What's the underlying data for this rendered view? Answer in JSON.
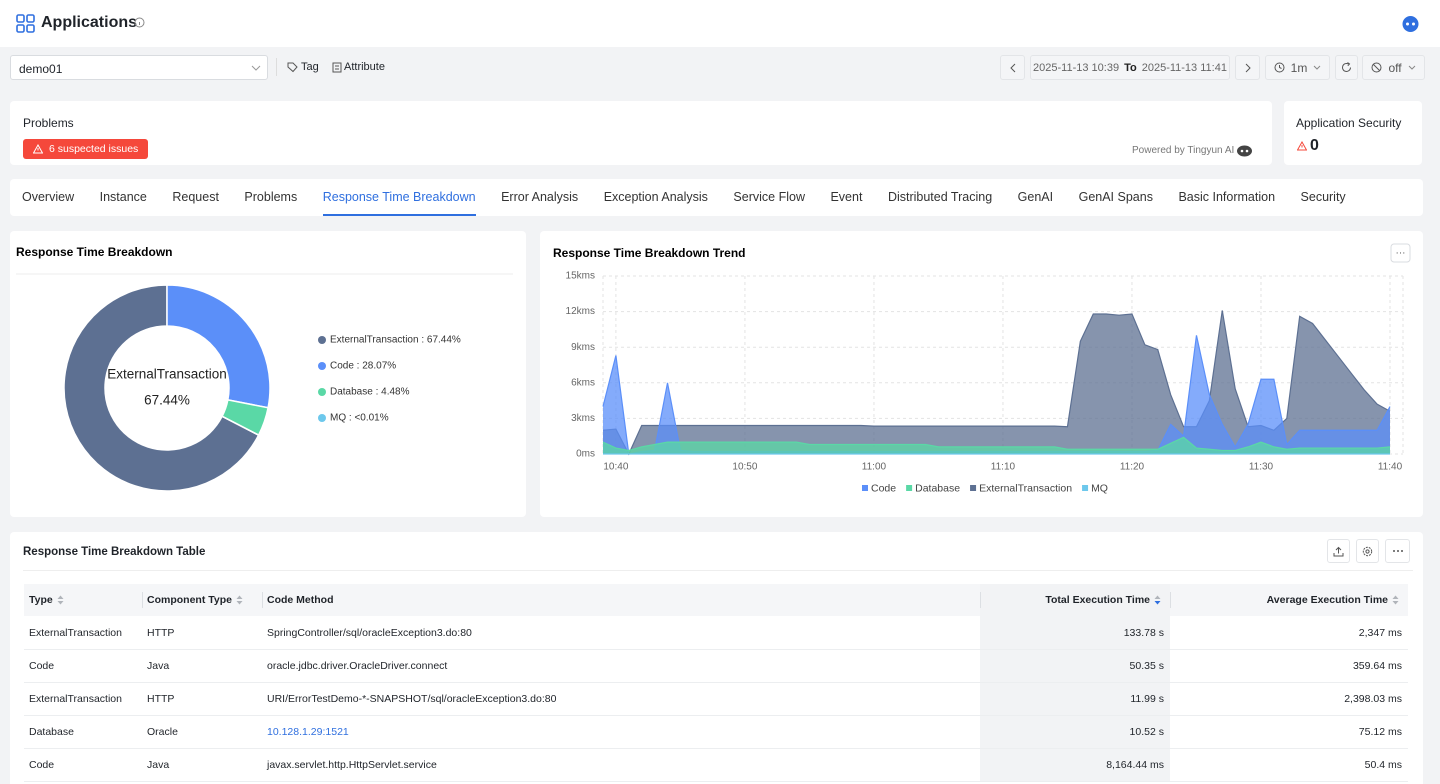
{
  "header": {
    "title": "Applications"
  },
  "toolbar": {
    "app": "demo01",
    "tag": "Tag",
    "attribute": "Attribute",
    "time_from": "2025-11-13 10:39",
    "to": "To",
    "time_to": "2025-11-13 11:41",
    "interval": "1m",
    "auto_refresh": "off"
  },
  "problems": {
    "title": "Problems",
    "badge": "6 suspected issues",
    "powered_by": "Powered by Tingyun AI"
  },
  "security": {
    "title": "Application Security",
    "count": "0"
  },
  "tabs": {
    "items": [
      "Overview",
      "Instance",
      "Request",
      "Problems",
      "Response Time Breakdown",
      "Error Analysis",
      "Exception Analysis",
      "Service Flow",
      "Event",
      "Distributed Tracing",
      "GenAI",
      "GenAI Spans",
      "Basic Information",
      "Security"
    ],
    "active": 4
  },
  "chart_data": [
    {
      "type": "pie",
      "title": "Response Time Breakdown",
      "categories": [
        "ExternalTransaction",
        "Code",
        "Database",
        "MQ"
      ],
      "values": [
        67.44,
        28.07,
        4.48,
        0.005
      ],
      "colors": [
        "#5d7092",
        "#5b8ff9",
        "#5ad8a6",
        "#6dc8ec"
      ],
      "legend_labels": [
        "ExternalTransaction : 67.44%",
        "Code : 28.07%",
        "Database : 4.48%",
        "MQ : <0.01%"
      ],
      "center_value": "67.44%"
    },
    {
      "type": "area",
      "title": "Response Time Breakdown Trend",
      "categories": [
        null,
        "10:40",
        null,
        null,
        null,
        null,
        null,
        null,
        null,
        null,
        null,
        "10:50",
        null,
        null,
        null,
        null,
        null,
        null,
        null,
        null,
        null,
        "11:00",
        null,
        null,
        null,
        null,
        null,
        null,
        null,
        null,
        null,
        "11:10",
        null,
        null,
        null,
        null,
        null,
        null,
        null,
        null,
        null,
        "11:20",
        null,
        null,
        null,
        null,
        null,
        null,
        null,
        null,
        null,
        "11:30",
        null,
        null,
        null,
        null,
        null,
        null,
        null,
        null,
        null,
        "11:40"
      ],
      "series": [
        {
          "name": "Code",
          "color": "#5b8ff9",
          "values": [
            4000,
            8300,
            0,
            200,
            300,
            6000,
            300,
            200,
            200,
            200,
            200,
            200,
            200,
            200,
            200,
            200,
            200,
            200,
            200,
            200,
            200,
            200,
            200,
            200,
            200,
            200,
            200,
            200,
            200,
            200,
            200,
            200,
            200,
            200,
            200,
            200,
            200,
            200,
            200,
            200,
            200,
            200,
            200,
            300,
            2500,
            1500,
            10000,
            5000,
            2500,
            600,
            2500,
            6300,
            6300,
            800,
            2000,
            2000,
            2000,
            2000,
            2000,
            2000,
            2000,
            4000
          ]
        },
        {
          "name": "Database",
          "color": "#5ad8a6",
          "values": [
            1000,
            500,
            300,
            600,
            800,
            1000,
            1000,
            1000,
            1000,
            1000,
            1000,
            1000,
            1000,
            1000,
            1000,
            1000,
            800,
            800,
            800,
            800,
            800,
            800,
            800,
            800,
            800,
            800,
            600,
            600,
            600,
            600,
            600,
            600,
            600,
            600,
            600,
            600,
            400,
            400,
            400,
            400,
            400,
            400,
            400,
            400,
            900,
            1400,
            500,
            400,
            300,
            300,
            600,
            1000,
            600,
            400,
            500,
            500,
            500,
            500,
            500,
            500,
            500,
            600
          ]
        },
        {
          "name": "ExternalTransaction",
          "color": "#5d7092",
          "values": [
            2000,
            2100,
            0,
            2400,
            2400,
            2400,
            2400,
            2400,
            2400,
            2400,
            2400,
            2400,
            2400,
            2400,
            2400,
            2400,
            2400,
            2400,
            2400,
            2400,
            2400,
            2350,
            2350,
            2350,
            2350,
            2350,
            2350,
            2350,
            2350,
            2350,
            2350,
            2350,
            2350,
            2350,
            2350,
            2350,
            2300,
            9500,
            11800,
            11800,
            11700,
            11800,
            9200,
            8800,
            5000,
            2300,
            2300,
            4500,
            12100,
            5500,
            2300,
            2400,
            2000,
            3000,
            11600,
            11000,
            9600,
            8200,
            6800,
            5400,
            4200,
            3600
          ]
        },
        {
          "name": "MQ",
          "color": "#6dc8ec",
          "values": [
            0,
            0,
            0,
            0,
            0,
            0,
            0,
            0,
            0,
            0,
            0,
            0,
            0,
            0,
            0,
            0,
            0,
            0,
            0,
            0,
            0,
            0,
            0,
            0,
            0,
            0,
            0,
            0,
            0,
            0,
            0,
            0,
            0,
            0,
            0,
            0,
            0,
            0,
            0,
            0,
            0,
            0,
            0,
            0,
            0,
            0,
            0,
            0,
            0,
            0,
            0,
            0,
            0,
            0,
            0,
            0,
            0,
            0,
            0,
            0,
            0,
            0
          ]
        }
      ],
      "ylim": [
        0,
        15000
      ],
      "yticks": [
        {
          "value": 0,
          "label": "0ms"
        },
        {
          "value": 3000,
          "label": "3kms"
        },
        {
          "value": 6000,
          "label": "6kms"
        },
        {
          "value": 9000,
          "label": "9kms"
        },
        {
          "value": 12000,
          "label": "12kms"
        },
        {
          "value": 15000,
          "label": "15kms"
        }
      ],
      "grid": true,
      "legend": "bottom"
    }
  ],
  "table": {
    "title": "Response Time Breakdown Table",
    "columns": [
      "Type",
      "Component Type",
      "Code Method",
      "Total Execution Time",
      "Average Execution Time"
    ],
    "sortable": [
      true,
      true,
      false,
      true,
      true
    ],
    "sorted_column": 3,
    "rows": [
      [
        "ExternalTransaction",
        "HTTP",
        "SpringController/sql/oracleException3.do:80",
        "133.78 s",
        "2,347 ms"
      ],
      [
        "Code",
        "Java",
        "oracle.jdbc.driver.OracleDriver.connect",
        "50.35 s",
        "359.64 ms"
      ],
      [
        "ExternalTransaction",
        "HTTP",
        "URI/ErrorTestDemo-*-SNAPSHOT/sql/oracleException3.do:80",
        "11.99 s",
        "2,398.03 ms"
      ],
      [
        "Database",
        "Oracle",
        "10.128.1.29:1521",
        "10.52 s",
        "75.12 ms"
      ],
      [
        "Code",
        "Java",
        "javax.servlet.http.HttpServlet.service",
        "8,164.44 ms",
        "50.4 ms"
      ]
    ],
    "link_cells": [
      [
        3,
        2
      ]
    ]
  }
}
